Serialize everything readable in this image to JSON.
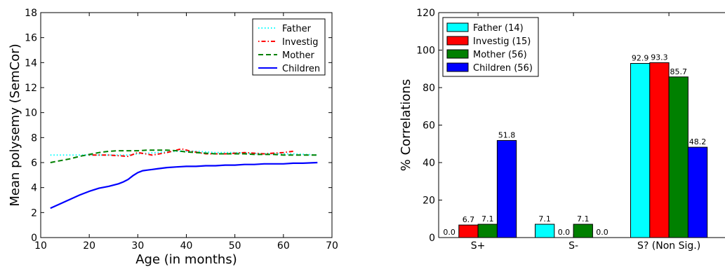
{
  "chart_data": [
    {
      "type": "line",
      "title": "",
      "xlabel": "Age (in months)",
      "ylabel": "Mean polysemy (SemCor)",
      "xlim": [
        10,
        70
      ],
      "ylim": [
        0,
        18
      ],
      "xticks": [
        10,
        20,
        30,
        40,
        50,
        60,
        70
      ],
      "yticks": [
        0,
        2,
        4,
        6,
        8,
        10,
        12,
        14,
        16,
        18
      ],
      "grid": false,
      "legend_position": "top-right",
      "series": [
        {
          "name": "Father",
          "color": "#00ffff",
          "style": "dotted",
          "x": [
            12,
            16,
            20,
            24,
            28,
            30,
            34,
            38,
            42,
            46,
            50,
            54,
            58,
            62,
            67
          ],
          "y": [
            6.6,
            6.6,
            6.6,
            6.6,
            6.6,
            6.7,
            6.8,
            6.9,
            6.9,
            6.8,
            6.8,
            6.7,
            6.7,
            6.7,
            6.6
          ]
        },
        {
          "name": "Investig",
          "color": "#ff0000",
          "style": "dashdot",
          "x": [
            20,
            24,
            28,
            30,
            33,
            36,
            39,
            41,
            44,
            48,
            52,
            56,
            60,
            62
          ],
          "y": [
            6.6,
            6.6,
            6.5,
            6.8,
            6.6,
            6.8,
            7.1,
            6.9,
            6.7,
            6.7,
            6.8,
            6.7,
            6.8,
            6.9
          ]
        },
        {
          "name": "Mother",
          "color": "#008000",
          "style": "dashed",
          "x": [
            12,
            14,
            16,
            18,
            20,
            22,
            24,
            26,
            28,
            30,
            32,
            34,
            36,
            38,
            40,
            42,
            44,
            46,
            48,
            50,
            52,
            54,
            56,
            58,
            60,
            62,
            64,
            67
          ],
          "y": [
            6.0,
            6.15,
            6.3,
            6.5,
            6.65,
            6.8,
            6.9,
            6.95,
            6.95,
            6.95,
            7.0,
            7.0,
            7.0,
            6.95,
            6.85,
            6.8,
            6.75,
            6.7,
            6.7,
            6.7,
            6.7,
            6.65,
            6.65,
            6.65,
            6.6,
            6.6,
            6.6,
            6.6
          ]
        },
        {
          "name": "Children",
          "color": "#0000ff",
          "style": "solid",
          "x": [
            12,
            14,
            16,
            18,
            20,
            22,
            24,
            26,
            27,
            28,
            29,
            30,
            31,
            32,
            33,
            34,
            35,
            36,
            38,
            40,
            42,
            44,
            46,
            48,
            50,
            52,
            54,
            56,
            58,
            60,
            62,
            64,
            67
          ],
          "y": [
            2.35,
            2.7,
            3.05,
            3.4,
            3.7,
            3.95,
            4.1,
            4.3,
            4.45,
            4.65,
            4.95,
            5.2,
            5.35,
            5.4,
            5.45,
            5.5,
            5.55,
            5.6,
            5.65,
            5.7,
            5.7,
            5.75,
            5.75,
            5.8,
            5.8,
            5.85,
            5.85,
            5.9,
            5.9,
            5.9,
            5.95,
            5.95,
            6.0
          ]
        }
      ]
    },
    {
      "type": "bar",
      "title": "",
      "xlabel": "",
      "ylabel": "% Correlations",
      "ylim": [
        0,
        120
      ],
      "yticks": [
        0,
        20,
        40,
        60,
        80,
        100,
        120
      ],
      "grid": false,
      "legend_position": "top-left",
      "categories": [
        "S+",
        "S-",
        "S? (Non Sig.)"
      ],
      "series": [
        {
          "name": "Father (14)",
          "color": "#00ffff",
          "values": [
            0.0,
            7.1,
            92.9
          ],
          "labels": [
            "0.0",
            "7.1",
            "92.9"
          ]
        },
        {
          "name": "Investig (15)",
          "color": "#ff0000",
          "values": [
            6.7,
            0.0,
            93.3
          ],
          "labels": [
            "6.7",
            "0.0",
            "93.3"
          ]
        },
        {
          "name": "Mother (56)",
          "color": "#008000",
          "values": [
            7.1,
            7.1,
            85.7
          ],
          "labels": [
            "7.1",
            "7.1",
            "85.7"
          ]
        },
        {
          "name": "Children (56)",
          "color": "#0000ff",
          "values": [
            51.8,
            0.0,
            48.2
          ],
          "labels": [
            "51.8",
            "0.0",
            "48.2"
          ]
        }
      ]
    }
  ]
}
